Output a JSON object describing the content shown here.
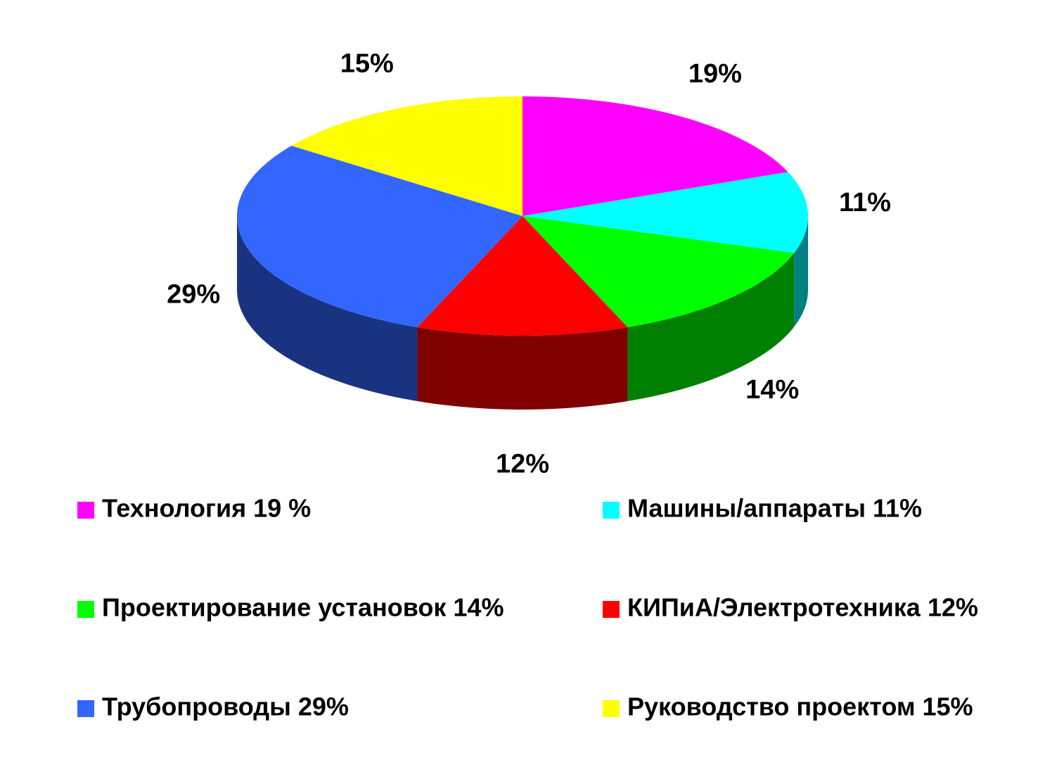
{
  "chart_data": {
    "type": "pie",
    "categories": [
      "Технология 19 %",
      "Машины/аппараты 11%",
      "Проектирование установок 14%",
      "КИПиА/Электротехника 12%",
      "Трубопроводы 29%",
      "Руководство проектом 15%"
    ],
    "values": [
      19,
      11,
      14,
      12,
      29,
      15
    ],
    "value_labels": [
      "19%",
      "11%",
      "14%",
      "12%",
      "29%",
      "15%"
    ],
    "colors": [
      "#ff00ff",
      "#00ffff",
      "#00ff00",
      "#ff0000",
      "#3366ff",
      "#ffff00"
    ],
    "legend": "bottom"
  }
}
